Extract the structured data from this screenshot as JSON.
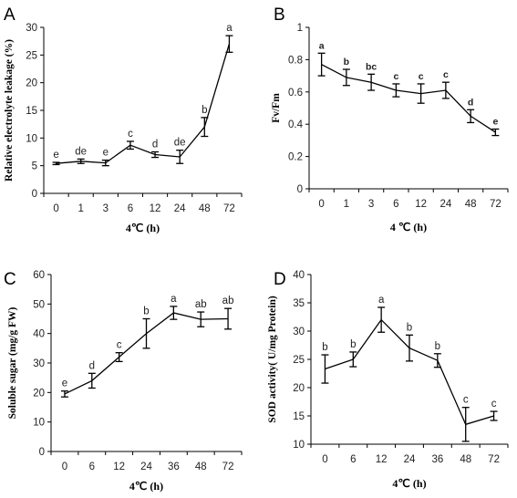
{
  "chart_data": [
    {
      "panel": "A",
      "type": "line",
      "categories": [
        "0",
        "1",
        "3",
        "6",
        "12",
        "24",
        "48",
        "72"
      ],
      "values": [
        5.4,
        5.8,
        5.5,
        8.7,
        7.0,
        6.6,
        12.0,
        27.0
      ],
      "errors": [
        0.2,
        0.4,
        0.5,
        0.7,
        0.5,
        1.2,
        1.7,
        1.5
      ],
      "letters": [
        "e",
        "de",
        "e",
        "c",
        "d",
        "de",
        "b",
        "a"
      ],
      "xlabel": "4℃ (h)",
      "ylabel": "Relative electrolyte leakage (%)",
      "ylim": [
        0,
        30
      ],
      "yticks": [
        0,
        5,
        10,
        15,
        20,
        25,
        30
      ]
    },
    {
      "panel": "B",
      "type": "line",
      "categories": [
        "0",
        "1",
        "3",
        "6",
        "12",
        "24",
        "48",
        "72"
      ],
      "values": [
        0.77,
        0.69,
        0.66,
        0.61,
        0.59,
        0.61,
        0.45,
        0.35
      ],
      "errors": [
        0.07,
        0.05,
        0.05,
        0.04,
        0.06,
        0.05,
        0.04,
        0.02
      ],
      "letters": [
        "a",
        "b",
        "bc",
        "c",
        "c",
        "c",
        "d",
        "e"
      ],
      "xlabel": "4 ℃ (h)",
      "ylabel": "Fv/Fm",
      "ylim": [
        0,
        1
      ],
      "yticks": [
        "0",
        "0.2",
        "0.4",
        "0.6",
        "0.8",
        "1"
      ]
    },
    {
      "panel": "C",
      "type": "line",
      "categories": [
        "0",
        "6",
        "12",
        "24",
        "36",
        "48",
        "72"
      ],
      "values": [
        19.5,
        24.0,
        32.0,
        40.0,
        47.0,
        44.8,
        45.0
      ],
      "errors": [
        1.0,
        2.5,
        1.5,
        5.0,
        2.2,
        2.5,
        3.5
      ],
      "letters": [
        "e",
        "d",
        "c",
        "b",
        "a",
        "ab",
        "ab"
      ],
      "xlabel": "4℃ (h)",
      "ylabel": "Soluble sugar (mg/g FW)",
      "ylim": [
        0,
        60
      ],
      "yticks": [
        0,
        10,
        20,
        30,
        40,
        50,
        60
      ]
    },
    {
      "panel": "D",
      "type": "line",
      "categories": [
        "0",
        "6",
        "12",
        "24",
        "36",
        "48",
        "72"
      ],
      "values": [
        23.3,
        25.0,
        32.0,
        27.0,
        24.8,
        13.5,
        15.0
      ],
      "errors": [
        2.5,
        1.3,
        2.2,
        2.3,
        1.2,
        3.0,
        0.8
      ],
      "letters": [
        "b",
        "b",
        "a",
        "b",
        "b",
        "c",
        "c"
      ],
      "xlabel": "4℃ (h)",
      "ylabel": "SOD activity( U/mg Protein)",
      "ylim": [
        10,
        40
      ],
      "yticks": [
        10,
        15,
        20,
        25,
        30,
        35,
        40
      ]
    }
  ]
}
